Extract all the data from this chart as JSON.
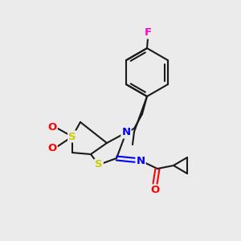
{
  "background_color": "#ebebeb",
  "bond_color": "#1a1a1a",
  "atom_colors": {
    "N": "#0000ff",
    "S": "#cccc00",
    "O": "#ff0000",
    "F": "#ff00cc"
  },
  "figsize": [
    3.0,
    3.0
  ],
  "dpi": 100
}
